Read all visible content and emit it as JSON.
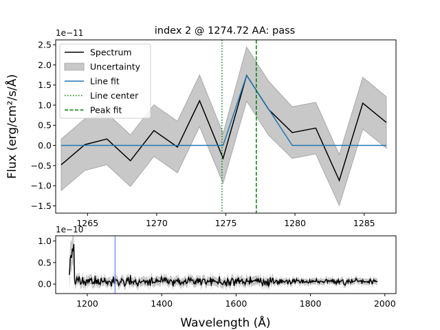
{
  "title": "index 2 @ 1274.72 AA: pass",
  "ylabel": "Flux (erg/cm²/s/Å)",
  "xlabel": "Wavelength (Å)",
  "colors": {
    "spectrum": "#000000",
    "uncertainty": "#c8c8c8",
    "uncertainty_edge": "#a8a8a8",
    "line_fit": "#1f77b4",
    "line_center": "#008000",
    "peak_fit": "#008000",
    "overview_marker": "#6f9cf6"
  },
  "chart_data": [
    {
      "type": "line",
      "title": "index 2 @ 1274.72 AA: pass",
      "ylabel": "Flux (erg/cm²/s/Å)",
      "y_offset_text": "1e−11",
      "xlim": [
        1262.7,
        1287.3
      ],
      "ylim": [
        -1.68,
        2.62
      ],
      "xticks": [
        1265,
        1270,
        1275,
        1280,
        1285
      ],
      "xtick_labels": [
        "1265",
        "1270",
        "1275",
        "1280",
        "1285"
      ],
      "yticks": [
        -1.5,
        -1.0,
        -0.5,
        0.0,
        0.5,
        1.0,
        1.5,
        2.0,
        2.5
      ],
      "ytick_labels": [
        "−1.5",
        "−1.0",
        "−0.5",
        "0.0",
        "0.5",
        "1.0",
        "1.5",
        "2.0",
        "2.5"
      ],
      "grid": false,
      "legend_position": "top-left",
      "legend": [
        "Spectrum",
        "Uncertainty",
        "Line fit",
        "Line center",
        "Peak fit"
      ],
      "x": [
        1263.1,
        1264.8,
        1266.4,
        1268.1,
        1269.8,
        1271.5,
        1273.1,
        1274.8,
        1276.5,
        1278.1,
        1279.8,
        1281.5,
        1283.2,
        1284.9,
        1286.6
      ],
      "series": [
        {
          "name": "Spectrum",
          "values": [
            -0.48,
            0.02,
            0.16,
            -0.38,
            0.37,
            -0.04,
            1.11,
            -0.32,
            1.74,
            0.89,
            0.32,
            0.43,
            -0.87,
            1.05,
            0.57
          ]
        },
        {
          "name": "Uncertainty",
          "lower": [
            -1.12,
            -0.62,
            -0.48,
            -1.02,
            -0.27,
            -0.68,
            0.47,
            -0.94,
            1.1,
            0.25,
            -0.32,
            -0.21,
            -1.49,
            0.41,
            -0.07
          ],
          "upper": [
            0.16,
            0.66,
            0.8,
            0.26,
            1.01,
            0.6,
            1.75,
            0.3,
            2.44,
            1.59,
            0.96,
            1.07,
            -0.23,
            1.69,
            1.21
          ]
        },
        {
          "name": "Line fit",
          "x": [
            1263.1,
            1274.8,
            1276.5,
            1279.8,
            1286.6
          ],
          "values": [
            0.0,
            0.0,
            1.74,
            0.0,
            0.0
          ]
        }
      ],
      "vlines": [
        {
          "name": "Line center",
          "x": 1274.72,
          "style": "dotted"
        },
        {
          "name": "Peak fit",
          "x": 1277.2,
          "style": "dashed"
        }
      ]
    },
    {
      "type": "line",
      "xlabel": "Wavelength (Å)",
      "y_offset_text": "1e−10",
      "xlim": [
        1115,
        2030
      ],
      "ylim": [
        -0.22,
        1.12
      ],
      "xticks": [
        1200,
        1400,
        1600,
        1800,
        2000
      ],
      "xtick_labels": [
        "1200",
        "1400",
        "1600",
        "1800",
        "2000"
      ],
      "yticks": [
        0.0,
        0.5,
        1.0
      ],
      "ytick_labels": [
        "0.0",
        "0.5",
        "1.0"
      ],
      "grid": false,
      "series": [
        {
          "name": "Spectrum",
          "x_range": [
            1152,
            1980
          ]
        }
      ],
      "vlines": [
        {
          "x": 1274.72
        }
      ]
    }
  ]
}
